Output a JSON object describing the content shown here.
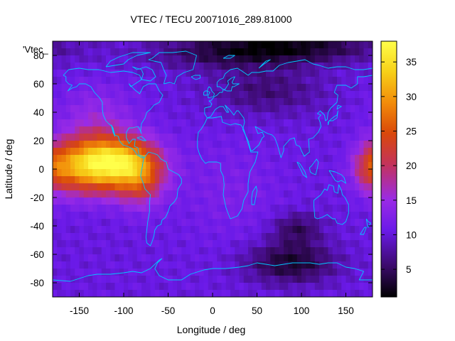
{
  "chart_data": {
    "type": "heatmap",
    "title": "VTEC / TECU 20071016_289.81000",
    "xlabel": "Longitude / deg",
    "ylabel": "Latitude / deg",
    "series_label": "'Vtec_",
    "xlim": [
      -180,
      180
    ],
    "ylim": [
      -90,
      90
    ],
    "x_ticks": [
      -150,
      -100,
      -50,
      0,
      50,
      100,
      150
    ],
    "y_ticks": [
      -80,
      -60,
      -40,
      -20,
      0,
      20,
      40,
      60,
      80
    ],
    "colorbar": {
      "range": [
        1,
        38
      ],
      "ticks": [
        5,
        10,
        15,
        20,
        25,
        30,
        35
      ],
      "colormap": [
        "#000000",
        "#3b0a6a",
        "#6a1ae8",
        "#9a2be6",
        "#c4335a",
        "#d9480a",
        "#f28c0a",
        "#f7d018",
        "#ffff4a"
      ]
    },
    "grid": false,
    "legend_position": "top-left",
    "field_description": "background ~10 TECU; equatorial anomaly peak ~36 TECU centred near lon -110 lat 5; secondary maximum ~20 TECU near lon 180 lat 0; minima ~2 TECU near lon 80 lat 85 and lon 90 lat -65",
    "field_features": [
      {
        "lon": -115,
        "lat": 5,
        "value": 36
      },
      {
        "lon": -150,
        "lat": 3,
        "value": 32
      },
      {
        "lon": -85,
        "lat": -5,
        "value": 26
      },
      {
        "lon": -175,
        "lat": 8,
        "value": 21
      },
      {
        "lon": 178,
        "lat": 2,
        "value": 20
      },
      {
        "lon": 170,
        "lat": -5,
        "value": 16
      },
      {
        "lon": -130,
        "lat": 40,
        "value": 14
      },
      {
        "lon": 80,
        "lat": 85,
        "value": 2
      },
      {
        "lon": 85,
        "lat": -65,
        "value": 2
      },
      {
        "lon": 95,
        "lat": -45,
        "value": 4
      },
      {
        "lon": 60,
        "lat": 55,
        "value": 6
      }
    ],
    "overlay": "coastlines",
    "overlay_color": "#00c8ff"
  }
}
